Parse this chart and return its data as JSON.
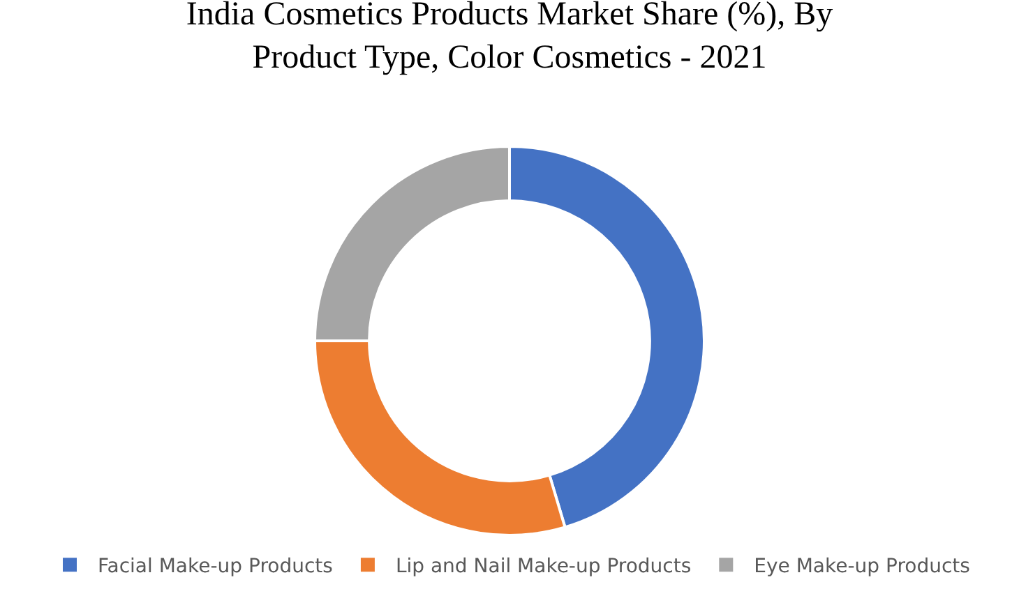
{
  "chart_data": {
    "type": "donut",
    "title": "India Cosmetics Products Market Share (%), By Product Type, Color Cosmetics - 2021",
    "categories": [
      "Facial Make-up Products",
      "Lip and Nail Make-up Products",
      "Eye Make-up Products"
    ],
    "values": [
      45.4,
      29.6,
      25.0
    ],
    "colors": [
      "#4472c4",
      "#ed7d31",
      "#a5a5a5"
    ],
    "legend": "bottom"
  }
}
